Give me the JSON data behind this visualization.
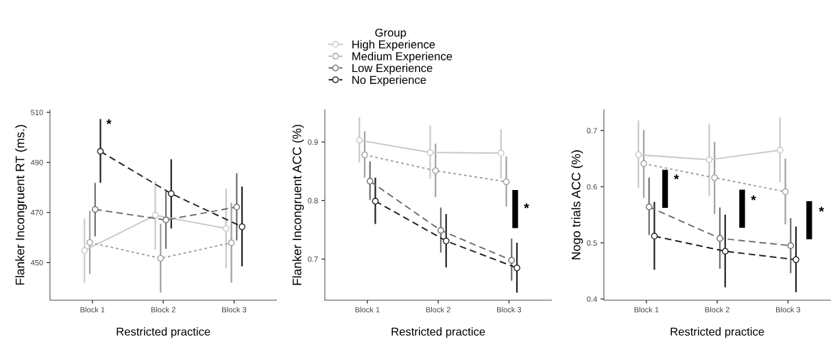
{
  "chart_data": [
    {
      "type": "line",
      "xlabel": "Restricted practice",
      "ylabel": "Flanker Incongruent RT (ms.)",
      "categories": [
        "Block 1",
        "Block 2",
        "Block 3"
      ],
      "ylim": [
        435,
        511
      ],
      "yticks": [
        450,
        470,
        490,
        510
      ],
      "grid": false,
      "marker": "circle",
      "series": [
        {
          "color": "#c8c8c8",
          "line_style": "solid",
          "values": [
            454.8,
            468.9,
            463.6
          ],
          "errors": [
            [
              442,
              467.5
            ],
            [
              455.2,
              482.5
            ],
            [
              447.7,
              479.5
            ]
          ]
        },
        {
          "color": "#a0a0a0",
          "line_style": "dotted",
          "values": [
            458.0,
            451.7,
            457.9
          ],
          "errors": [
            [
              445.5,
              470.7
            ],
            [
              438,
              465.5
            ],
            [
              442,
              473.8
            ]
          ]
        },
        {
          "color": "#6e6e6e",
          "line_style": "dashed",
          "values": [
            471.2,
            467,
            472.2
          ],
          "errors": [
            [
              460.5,
              481.8
            ],
            [
              455.5,
              478.4
            ],
            [
              458.8,
              485.7
            ]
          ]
        },
        {
          "color": "#202020",
          "line_style": "dashed",
          "values": [
            494.4,
            477.5,
            464.3
          ],
          "errors": [
            [
              481.8,
              507.3
            ],
            [
              463.6,
              491.2
            ],
            [
              448.5,
              480.3
            ]
          ]
        }
      ],
      "annotations": [
        "*"
      ]
    },
    {
      "type": "line",
      "xlabel": "Restricted practice",
      "ylabel": "Flanker Incongruent ACC (%)",
      "categories": [
        "Block 1",
        "Block 2",
        "Block 3"
      ],
      "ylim": [
        0.63,
        0.955
      ],
      "yticks": [
        0.7,
        0.8,
        0.9
      ],
      "grid": false,
      "legend": "top",
      "legend_title": "Group",
      "marker": "circle",
      "series": [
        {
          "name": "High Experience",
          "color": "#c8c8c8",
          "line_style": "solid",
          "values": [
            0.903,
            0.882,
            0.881
          ],
          "errors": [
            [
              0.865,
              0.942
            ],
            [
              0.837,
              0.928
            ],
            [
              0.838,
              0.922
            ]
          ]
        },
        {
          "name": "Medium Experience",
          "color": "#a0a0a0",
          "line_style": "dotted",
          "values": [
            0.878,
            0.851,
            0.832
          ],
          "errors": [
            [
              0.839,
              0.918
            ],
            [
              0.806,
              0.897
            ],
            [
              0.79,
              0.875
            ]
          ]
        },
        {
          "name": "Low Experience",
          "color": "#6e6e6e",
          "line_style": "dashed",
          "values": [
            0.833,
            0.749,
            0.698
          ],
          "errors": [
            [
              0.801,
              0.867
            ],
            [
              0.711,
              0.788
            ],
            [
              0.663,
              0.735
            ]
          ]
        },
        {
          "name": "No Experience",
          "color": "#202020",
          "line_style": "dashed",
          "values": [
            0.799,
            0.731,
            0.685
          ],
          "errors": [
            [
              0.76,
              0.839
            ],
            [
              0.686,
              0.777
            ],
            [
              0.643,
              0.728
            ]
          ]
        }
      ],
      "annotations": [
        "*"
      ]
    },
    {
      "type": "line",
      "xlabel": "Restricted practice",
      "ylabel": "Nogo trials ACC (%)",
      "categories": [
        "Block 1",
        "Block 2",
        "Block 3"
      ],
      "ylim": [
        0.398,
        0.737
      ],
      "yticks": [
        0.4,
        0.5,
        0.6,
        0.7
      ],
      "grid": false,
      "marker": "circle",
      "series": [
        {
          "color": "#c8c8c8",
          "line_style": "solid",
          "values": [
            0.657,
            0.648,
            0.665
          ],
          "errors": [
            [
              0.597,
              0.718
            ],
            [
              0.583,
              0.712
            ],
            [
              0.608,
              0.724
            ]
          ]
        },
        {
          "color": "#a0a0a0",
          "line_style": "dotted",
          "values": [
            0.641,
            0.616,
            0.591
          ],
          "errors": [
            [
              0.58,
              0.701
            ],
            [
              0.551,
              0.68
            ],
            [
              0.533,
              0.65
            ]
          ]
        },
        {
          "color": "#6e6e6e",
          "line_style": "dashed",
          "values": [
            0.564,
            0.508,
            0.495
          ],
          "errors": [
            [
              0.514,
              0.616
            ],
            [
              0.454,
              0.563
            ],
            [
              0.446,
              0.544
            ]
          ]
        },
        {
          "color": "#202020",
          "line_style": "dashed",
          "values": [
            0.512,
            0.485,
            0.47
          ],
          "errors": [
            [
              0.452,
              0.573
            ],
            [
              0.421,
              0.55
            ],
            [
              0.412,
              0.529
            ]
          ]
        }
      ],
      "annotations": [
        "*",
        "*",
        "*"
      ]
    }
  ]
}
